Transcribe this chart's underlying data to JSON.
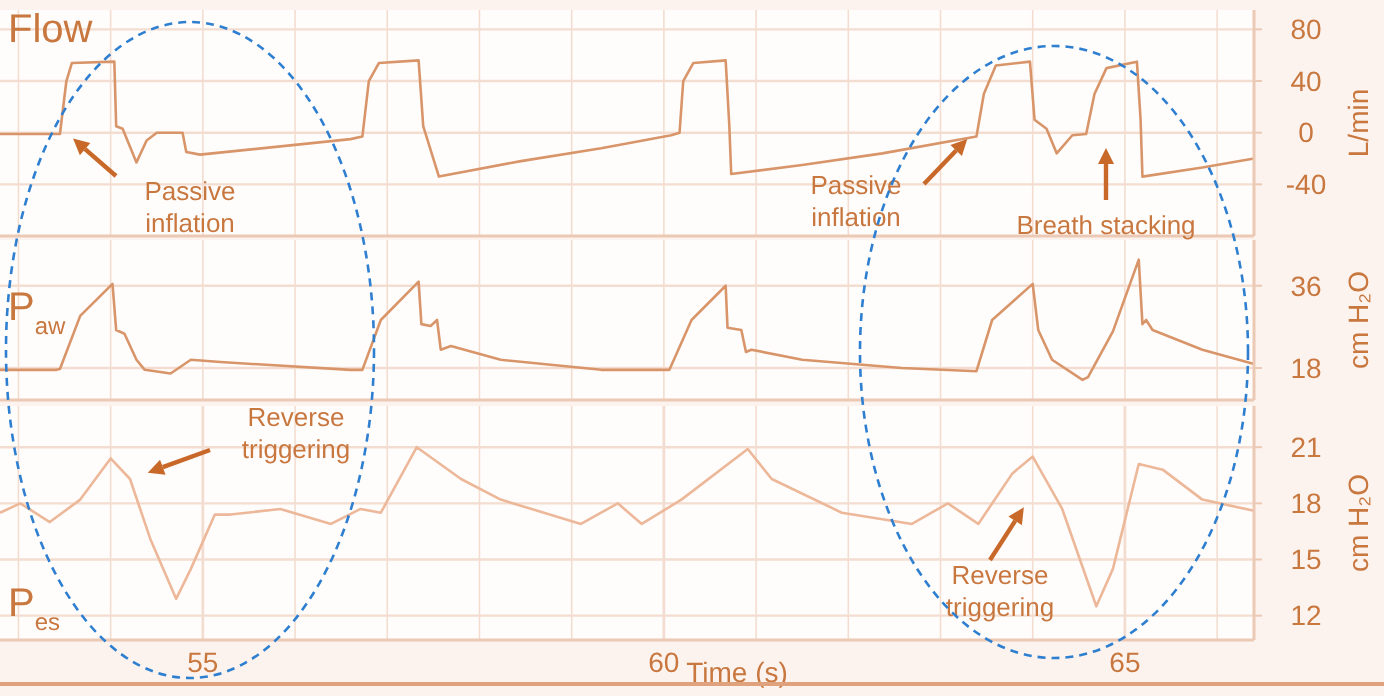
{
  "chart_data": [
    {
      "type": "line",
      "title": "Flow",
      "ylabel": "L/min",
      "xlim": [
        52.8,
        66.4
      ],
      "ylim": [
        -80,
        95
      ],
      "yticks": [
        -40,
        0,
        40,
        80
      ],
      "xticks": [
        {
          "value": 53,
          "label": null
        },
        {
          "value": 54,
          "label": null
        },
        {
          "value": 55,
          "label": null
        },
        {
          "value": 56,
          "label": null
        },
        {
          "value": 57,
          "label": null
        },
        {
          "value": 58,
          "label": null
        },
        {
          "value": 59,
          "label": null
        },
        {
          "value": 60,
          "label": null
        },
        {
          "value": 61,
          "label": null
        },
        {
          "value": 62,
          "label": null
        },
        {
          "value": 63,
          "label": null
        },
        {
          "value": 64,
          "label": null
        },
        {
          "value": 65,
          "label": null
        },
        {
          "value": 66,
          "label": null
        }
      ],
      "tick_labels": "y",
      "grid": true,
      "annotations": [
        "Passive inflation",
        "Passive inflation",
        "Breath stacking"
      ],
      "series": [
        {
          "color": "#d9956a",
          "x": [
            52.8,
            53.45,
            53.52,
            53.58,
            54.04,
            54.06,
            54.13,
            54.28,
            54.39,
            54.5,
            54.78,
            54.82,
            54.97,
            56.6,
            56.73,
            56.8,
            56.91,
            57.34,
            57.39,
            57.56,
            58.45,
            59.32,
            60.08,
            60.17,
            60.21,
            60.32,
            60.67,
            60.71,
            60.73,
            61.5,
            62.37,
            63.39,
            63.47,
            63.6,
            63.97,
            64.02,
            64.15,
            64.26,
            64.43,
            64.58,
            64.67,
            64.8,
            65.13,
            65.17,
            65.19,
            65.84,
            66.4
          ],
          "values": [
            -1,
            -1,
            40,
            54,
            55,
            5,
            3,
            -23,
            -6,
            0,
            0,
            -15,
            -17,
            -5,
            -3,
            40,
            54,
            56,
            5,
            -34,
            -22,
            -12,
            -2,
            0,
            40,
            54,
            56,
            5,
            -32,
            -25,
            -16,
            -3,
            30,
            52,
            55,
            10,
            3,
            -16,
            -2,
            -1,
            30,
            50,
            55,
            10,
            -34,
            -27,
            -20
          ]
        }
      ]
    },
    {
      "type": "line",
      "title": "P$_{aw}$",
      "ylabel": "cm H₂O",
      "xlim": [
        52.8,
        66.4
      ],
      "ylim": [
        11,
        46
      ],
      "yticks": [
        18,
        36
      ],
      "xticks": [
        {
          "value": 53,
          "label": null
        },
        {
          "value": 54,
          "label": null
        },
        {
          "value": 55,
          "label": null
        },
        {
          "value": 56,
          "label": null
        },
        {
          "value": 57,
          "label": null
        },
        {
          "value": 58,
          "label": null
        },
        {
          "value": 59,
          "label": null
        },
        {
          "value": 60,
          "label": null
        },
        {
          "value": 61,
          "label": null
        },
        {
          "value": 62,
          "label": null
        },
        {
          "value": 63,
          "label": null
        },
        {
          "value": 64,
          "label": null
        },
        {
          "value": 65,
          "label": null
        },
        {
          "value": 66,
          "label": null
        }
      ],
      "tick_labels": "y",
      "grid": true,
      "series": [
        {
          "color": "#d9956a",
          "x": [
            52.8,
            53.41,
            53.45,
            53.67,
            54.02,
            54.06,
            54.15,
            54.28,
            54.37,
            54.65,
            54.87,
            55.19,
            56.6,
            56.73,
            56.93,
            57.34,
            57.37,
            57.47,
            57.54,
            57.58,
            57.69,
            58.23,
            59.32,
            60.06,
            60.3,
            60.67,
            60.69,
            60.84,
            60.89,
            60.95,
            61.5,
            62.58,
            63.39,
            63.56,
            64.0,
            64.06,
            64.21,
            64.54,
            64.6,
            64.87,
            65.15,
            65.19,
            65.23,
            65.3,
            65.84,
            66.4
          ],
          "values": [
            17.6,
            17.6,
            17.8,
            29.4,
            36.4,
            26.3,
            25.5,
            19.8,
            17.6,
            16.8,
            19.8,
            19.3,
            17.6,
            17.6,
            28.5,
            36.9,
            27.6,
            27.2,
            28.5,
            22,
            22.8,
            19.8,
            17.6,
            17.6,
            28.5,
            36,
            26.8,
            26.3,
            21.5,
            22,
            19.8,
            18,
            17.3,
            28.5,
            36.4,
            26.3,
            19.8,
            15.4,
            16,
            26,
            41.7,
            27.6,
            28.5,
            26.3,
            22,
            18.9
          ]
        }
      ]
    },
    {
      "type": "line",
      "title": "P$_{es}$",
      "ylabel": "cm H₂O",
      "xlabel": "Time (s)",
      "xlim": [
        52.8,
        66.4
      ],
      "ylim": [
        10.7,
        23.2
      ],
      "yticks": [
        12,
        15,
        18,
        21
      ],
      "xticks": [
        {
          "value": 53,
          "label": null
        },
        {
          "value": 54,
          "label": null
        },
        55,
        {
          "value": 56,
          "label": null
        },
        {
          "value": 57,
          "label": null
        },
        {
          "value": 58,
          "label": null
        },
        {
          "value": 59,
          "label": null
        },
        60,
        {
          "value": 61,
          "label": null
        },
        {
          "value": 62,
          "label": null
        },
        {
          "value": 63,
          "label": null
        },
        {
          "value": 64,
          "label": null
        },
        65,
        {
          "value": 66,
          "label": null
        }
      ],
      "grid": true,
      "annotations": [
        "Reverse triggering",
        "Reverse triggering"
      ],
      "series": [
        {
          "color": "#ecb899",
          "x": [
            52.8,
            53.02,
            53.34,
            53.67,
            54.0,
            54.21,
            54.43,
            54.71,
            54.87,
            55.13,
            55.3,
            55.84,
            56.39,
            56.71,
            56.93,
            57.32,
            57.8,
            58.23,
            59.1,
            59.5,
            59.76,
            60.19,
            60.91,
            61.17,
            61.93,
            62.69,
            63.08,
            63.41,
            63.78,
            64.0,
            64.32,
            64.69,
            64.87,
            65.15,
            65.41,
            65.84,
            66.4
          ],
          "values": [
            17.5,
            18,
            17,
            18.2,
            20.4,
            19.3,
            16.1,
            12.9,
            14.5,
            17.4,
            17.4,
            17.7,
            16.9,
            17.7,
            17.5,
            21,
            19.3,
            18.2,
            16.9,
            18,
            16.9,
            18.2,
            20.9,
            19.3,
            17.5,
            16.9,
            18,
            16.9,
            19.6,
            20.5,
            17.7,
            12.5,
            14.5,
            20.1,
            19.8,
            18.2,
            17.6
          ]
        }
      ]
    }
  ]
}
